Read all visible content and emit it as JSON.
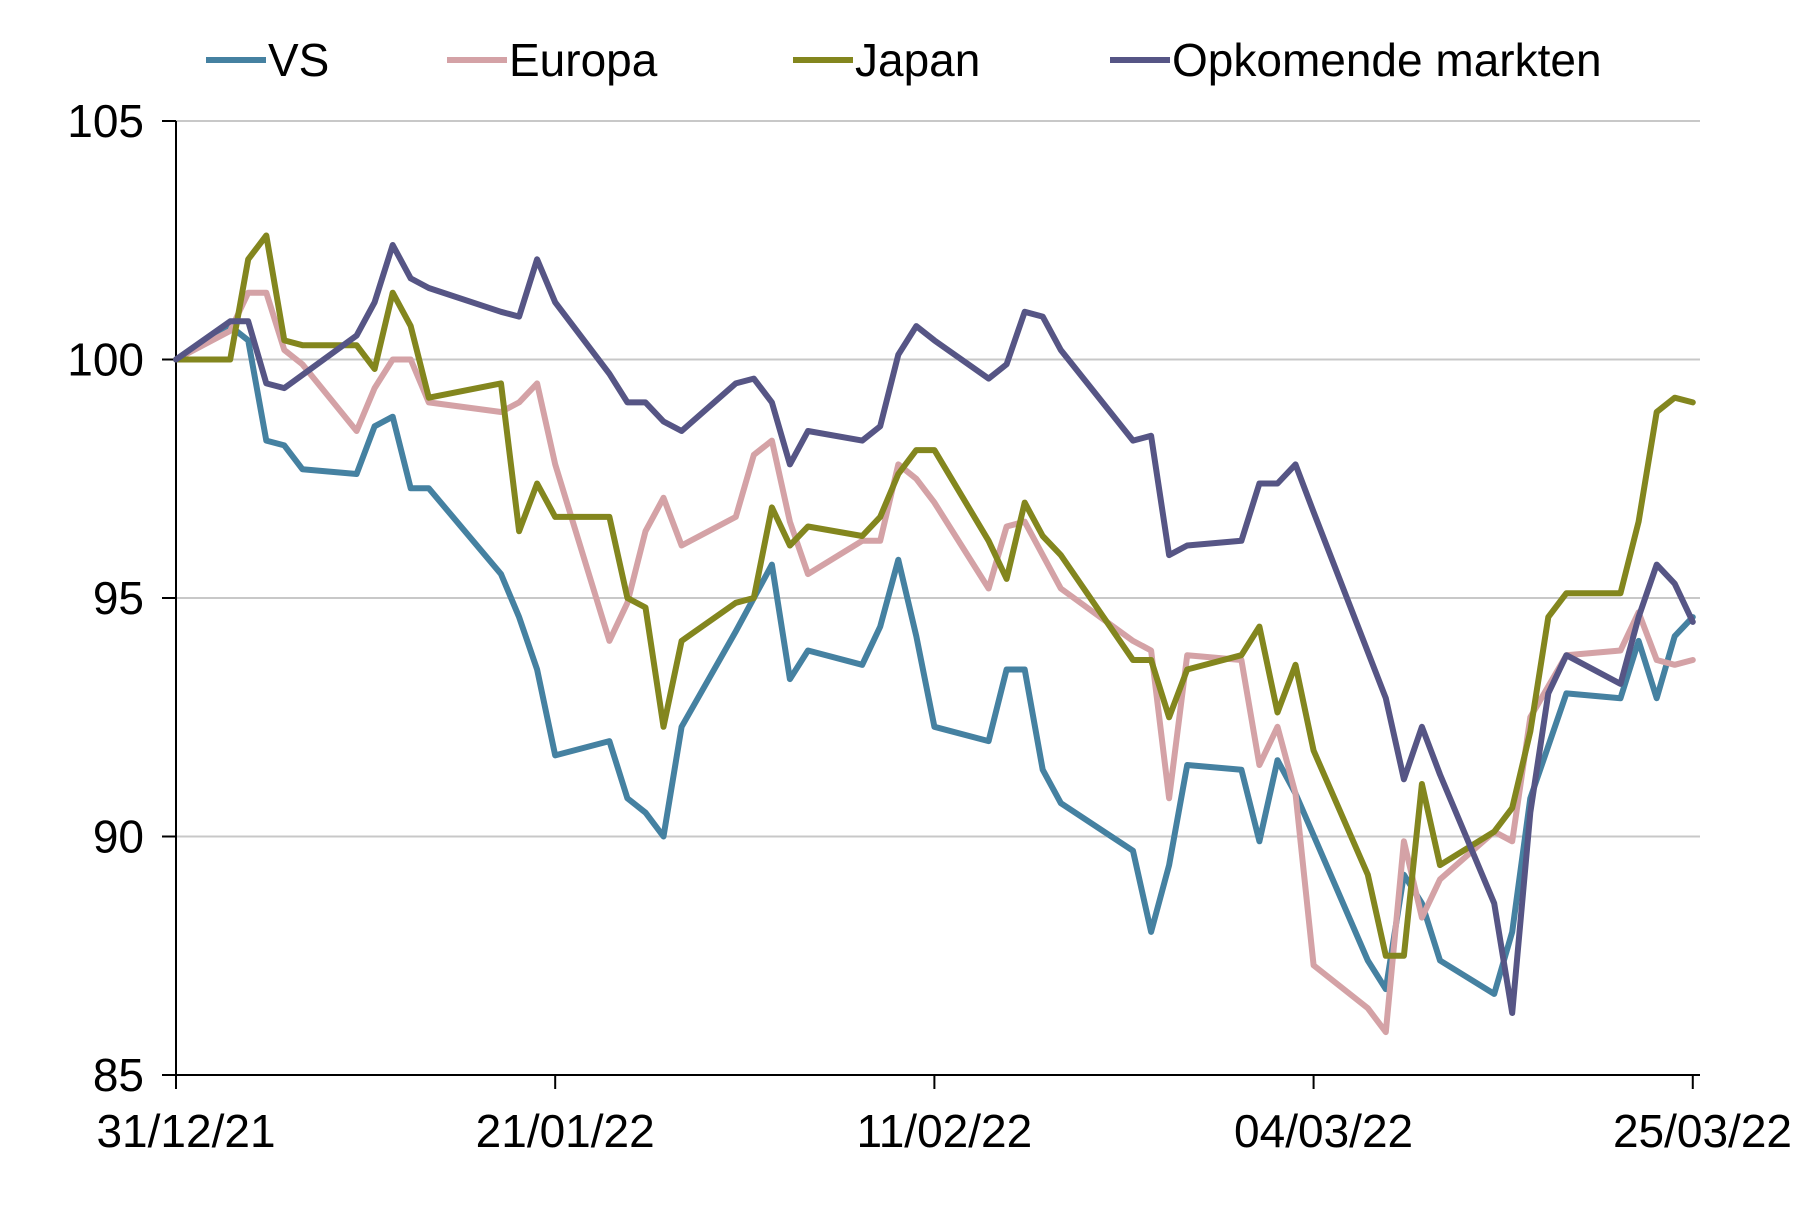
{
  "chart_data": {
    "type": "line",
    "title": "",
    "xlabel": "",
    "ylabel": "",
    "ylim": [
      85,
      105
    ],
    "yticks": [
      85,
      90,
      95,
      100,
      105
    ],
    "grid": "horizontal",
    "legend_placement": "top",
    "x_start": "31/12/21",
    "x_ticks": [
      {
        "day": 0,
        "label": "31/12/21"
      },
      {
        "day": 21,
        "label": "21/01/22"
      },
      {
        "day": 42,
        "label": "11/02/22"
      },
      {
        "day": 63,
        "label": "04/03/22"
      },
      {
        "day": 84,
        "label": "25/03/22"
      }
    ],
    "series": [
      {
        "name": "VS",
        "color": "#4581a1",
        "points": [
          [
            0,
            100
          ],
          [
            3,
            100.7
          ],
          [
            4,
            100.4
          ],
          [
            5,
            98.3
          ],
          [
            6,
            98.2
          ],
          [
            7,
            97.7
          ],
          [
            10,
            97.6
          ],
          [
            11,
            98.6
          ],
          [
            12,
            98.8
          ],
          [
            13,
            97.3
          ],
          [
            14,
            97.3
          ],
          [
            18,
            95.5
          ],
          [
            19,
            94.6
          ],
          [
            20,
            93.5
          ],
          [
            21,
            91.7
          ],
          [
            24,
            92
          ],
          [
            25,
            90.8
          ],
          [
            26,
            90.5
          ],
          [
            27,
            90
          ],
          [
            28,
            92.3
          ],
          [
            31,
            94.3
          ],
          [
            33,
            95.7
          ],
          [
            34,
            93.3
          ],
          [
            35,
            93.9
          ],
          [
            38,
            93.6
          ],
          [
            39,
            94.4
          ],
          [
            40,
            95.8
          ],
          [
            41,
            94.2
          ],
          [
            42,
            92.3
          ],
          [
            45,
            92
          ],
          [
            46,
            93.5
          ],
          [
            47,
            93.5
          ],
          [
            48,
            91.4
          ],
          [
            49,
            90.7
          ],
          [
            53,
            89.7
          ],
          [
            54,
            88
          ],
          [
            55,
            89.4
          ],
          [
            56,
            91.5
          ],
          [
            59,
            91.4
          ],
          [
            60,
            89.9
          ],
          [
            61,
            91.6
          ],
          [
            62,
            90.9
          ],
          [
            66,
            87.4
          ],
          [
            67,
            86.8
          ],
          [
            68,
            89.2
          ],
          [
            69,
            88.6
          ],
          [
            70,
            87.4
          ],
          [
            73,
            86.7
          ],
          [
            74,
            88
          ],
          [
            75,
            90.8
          ],
          [
            77,
            93
          ],
          [
            80,
            92.9
          ],
          [
            81,
            94.1
          ],
          [
            82,
            92.9
          ],
          [
            83,
            94.2
          ],
          [
            84,
            94.6
          ]
        ]
      },
      {
        "name": "Europa",
        "color": "#d4a2a6",
        "points": [
          [
            0,
            100
          ],
          [
            3,
            100.6
          ],
          [
            4,
            101.4
          ],
          [
            5,
            101.4
          ],
          [
            6,
            100.2
          ],
          [
            7,
            99.9
          ],
          [
            10,
            98.5
          ],
          [
            11,
            99.4
          ],
          [
            12,
            100
          ],
          [
            13,
            100
          ],
          [
            14,
            99.1
          ],
          [
            18,
            98.9
          ],
          [
            19,
            99.1
          ],
          [
            20,
            99.5
          ],
          [
            21,
            97.8
          ],
          [
            24,
            94.1
          ],
          [
            25,
            94.9
          ],
          [
            26,
            96.4
          ],
          [
            27,
            97.1
          ],
          [
            28,
            96.1
          ],
          [
            31,
            96.7
          ],
          [
            32,
            98
          ],
          [
            33,
            98.3
          ],
          [
            34,
            96.6
          ],
          [
            35,
            95.5
          ],
          [
            38,
            96.2
          ],
          [
            39,
            96.2
          ],
          [
            40,
            97.8
          ],
          [
            41,
            97.5
          ],
          [
            42,
            97
          ],
          [
            45,
            95.2
          ],
          [
            46,
            96.5
          ],
          [
            47,
            96.6
          ],
          [
            48,
            95.9
          ],
          [
            49,
            95.2
          ],
          [
            53,
            94.1
          ],
          [
            54,
            93.9
          ],
          [
            55,
            90.8
          ],
          [
            56,
            93.8
          ],
          [
            59,
            93.7
          ],
          [
            60,
            91.5
          ],
          [
            61,
            92.3
          ],
          [
            62,
            90.9
          ],
          [
            63,
            87.3
          ],
          [
            66,
            86.4
          ],
          [
            67,
            85.9
          ],
          [
            68,
            89.9
          ],
          [
            69,
            88.3
          ],
          [
            70,
            89.1
          ],
          [
            73,
            90.1
          ],
          [
            74,
            89.9
          ],
          [
            75,
            92.5
          ],
          [
            77,
            93.8
          ],
          [
            80,
            93.9
          ],
          [
            81,
            94.7
          ],
          [
            82,
            93.7
          ],
          [
            83,
            93.6
          ],
          [
            84,
            93.7
          ]
        ]
      },
      {
        "name": "Japan",
        "color": "#83861e",
        "points": [
          [
            0,
            100
          ],
          [
            3,
            100
          ],
          [
            4,
            102.1
          ],
          [
            5,
            102.6
          ],
          [
            6,
            100.4
          ],
          [
            7,
            100.3
          ],
          [
            10,
            100.3
          ],
          [
            11,
            99.8
          ],
          [
            12,
            101.4
          ],
          [
            13,
            100.7
          ],
          [
            14,
            99.2
          ],
          [
            18,
            99.5
          ],
          [
            19,
            96.4
          ],
          [
            20,
            97.4
          ],
          [
            21,
            96.7
          ],
          [
            24,
            96.7
          ],
          [
            25,
            95
          ],
          [
            26,
            94.8
          ],
          [
            27,
            92.3
          ],
          [
            28,
            94.1
          ],
          [
            31,
            94.9
          ],
          [
            32,
            95
          ],
          [
            33,
            96.9
          ],
          [
            34,
            96.1
          ],
          [
            35,
            96.5
          ],
          [
            38,
            96.3
          ],
          [
            39,
            96.7
          ],
          [
            40,
            97.6
          ],
          [
            41,
            98.1
          ],
          [
            42,
            98.1
          ],
          [
            45,
            96.2
          ],
          [
            46,
            95.4
          ],
          [
            47,
            97
          ],
          [
            48,
            96.3
          ],
          [
            49,
            95.9
          ],
          [
            53,
            93.7
          ],
          [
            54,
            93.7
          ],
          [
            55,
            92.5
          ],
          [
            56,
            93.5
          ],
          [
            59,
            93.8
          ],
          [
            60,
            94.4
          ],
          [
            61,
            92.6
          ],
          [
            62,
            93.6
          ],
          [
            63,
            91.8
          ],
          [
            66,
            89.2
          ],
          [
            67,
            87.5
          ],
          [
            68,
            87.5
          ],
          [
            69,
            91.1
          ],
          [
            70,
            89.4
          ],
          [
            73,
            90.1
          ],
          [
            74,
            90.6
          ],
          [
            75,
            92.2
          ],
          [
            76,
            94.6
          ],
          [
            77,
            95.1
          ],
          [
            80,
            95.1
          ],
          [
            81,
            96.6
          ],
          [
            82,
            98.9
          ],
          [
            83,
            99.2
          ],
          [
            84,
            99.1
          ]
        ]
      },
      {
        "name": "Opkomende markten",
        "color": "#565585",
        "points": [
          [
            0,
            100
          ],
          [
            3,
            100.8
          ],
          [
            4,
            100.8
          ],
          [
            5,
            99.5
          ],
          [
            6,
            99.4
          ],
          [
            10,
            100.5
          ],
          [
            11,
            101.2
          ],
          [
            12,
            102.4
          ],
          [
            13,
            101.7
          ],
          [
            14,
            101.5
          ],
          [
            18,
            101
          ],
          [
            19,
            100.9
          ],
          [
            20,
            102.1
          ],
          [
            21,
            101.2
          ],
          [
            24,
            99.7
          ],
          [
            25,
            99.1
          ],
          [
            26,
            99.1
          ],
          [
            27,
            98.7
          ],
          [
            28,
            98.5
          ],
          [
            31,
            99.5
          ],
          [
            32,
            99.6
          ],
          [
            33,
            99.1
          ],
          [
            34,
            97.8
          ],
          [
            35,
            98.5
          ],
          [
            38,
            98.3
          ],
          [
            39,
            98.6
          ],
          [
            40,
            100.1
          ],
          [
            41,
            100.7
          ],
          [
            42,
            100.4
          ],
          [
            45,
            99.6
          ],
          [
            46,
            99.9
          ],
          [
            47,
            101
          ],
          [
            48,
            100.9
          ],
          [
            49,
            100.2
          ],
          [
            53,
            98.3
          ],
          [
            54,
            98.4
          ],
          [
            55,
            95.9
          ],
          [
            56,
            96.1
          ],
          [
            59,
            96.2
          ],
          [
            60,
            97.4
          ],
          [
            61,
            97.4
          ],
          [
            62,
            97.8
          ],
          [
            63,
            96.8
          ],
          [
            67,
            92.9
          ],
          [
            68,
            91.2
          ],
          [
            69,
            92.3
          ],
          [
            70,
            91.3
          ],
          [
            73,
            88.6
          ],
          [
            74,
            86.3
          ],
          [
            75,
            90.5
          ],
          [
            76,
            93
          ],
          [
            77,
            93.8
          ],
          [
            80,
            93.2
          ],
          [
            81,
            94.6
          ],
          [
            82,
            95.7
          ],
          [
            83,
            95.3
          ],
          [
            84,
            94.5
          ]
        ]
      }
    ]
  }
}
